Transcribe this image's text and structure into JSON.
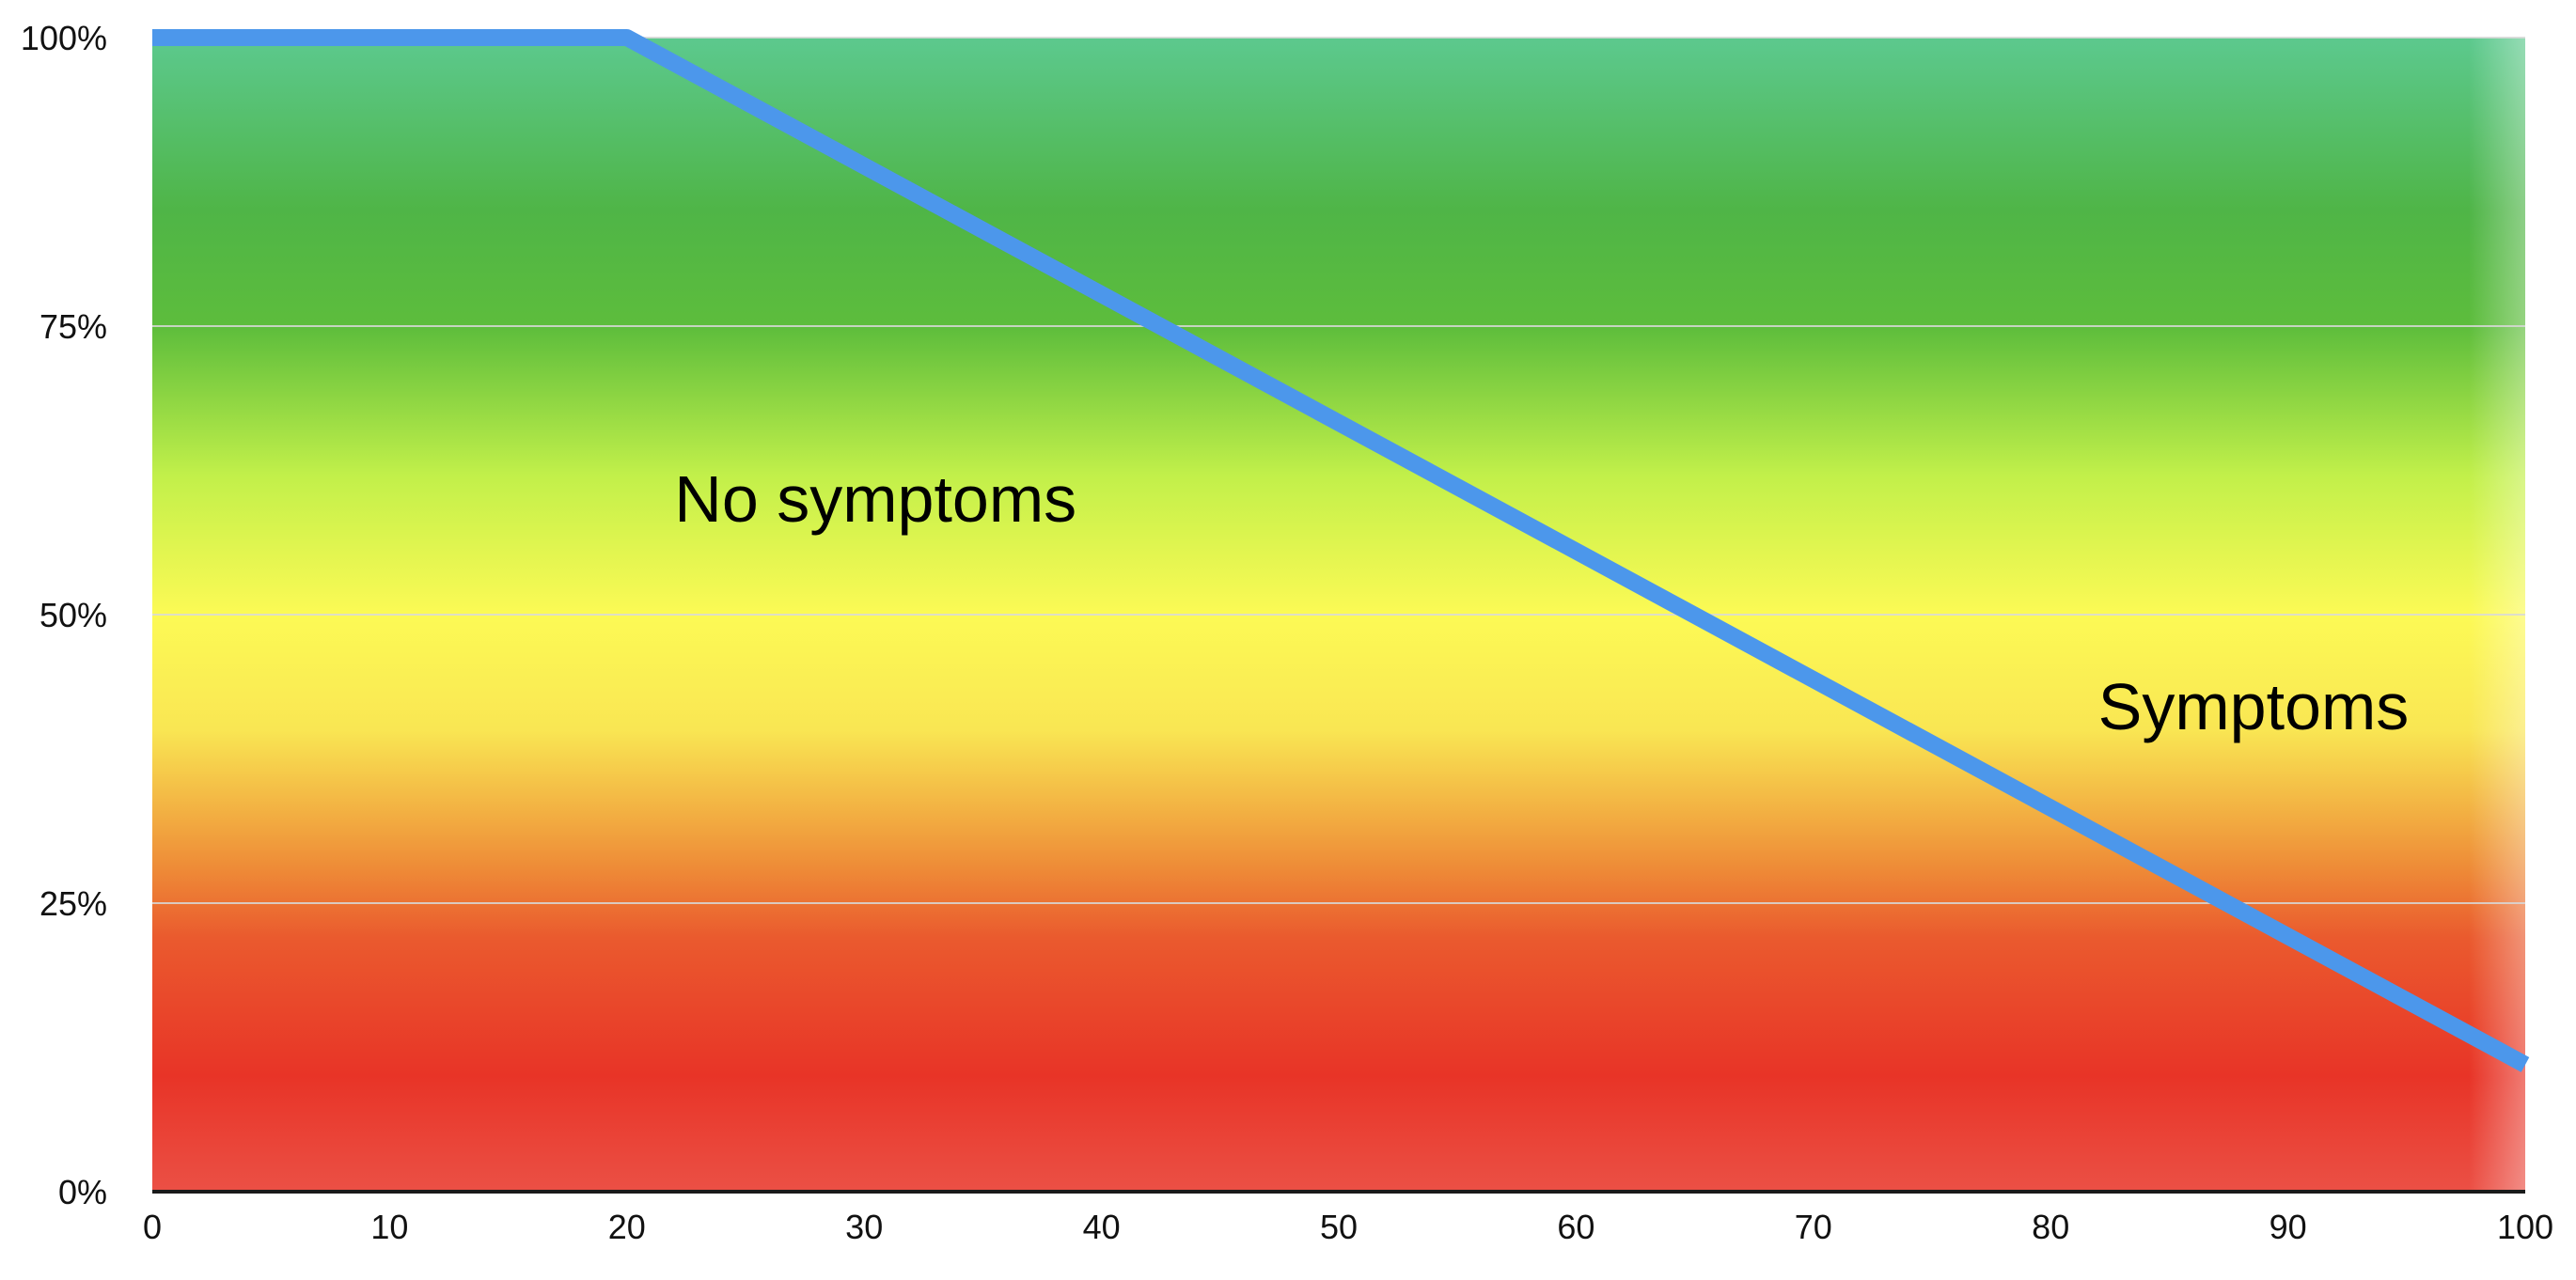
{
  "chart_data": {
    "type": "line",
    "title": "",
    "xlabel": "",
    "ylabel": "",
    "xlim": [
      0,
      100
    ],
    "ylim": [
      0,
      100
    ],
    "x_ticks": [
      0,
      10,
      20,
      30,
      40,
      50,
      60,
      70,
      80,
      90,
      100
    ],
    "x_tick_labels": [
      "0",
      "10",
      "20",
      "30",
      "40",
      "50",
      "60",
      "70",
      "80",
      "90",
      "100"
    ],
    "y_ticks": [
      0,
      25,
      50,
      75,
      100
    ],
    "y_tick_labels": [
      "0%",
      "25%",
      "50%",
      "75%",
      "100%"
    ],
    "grid": "horizontal",
    "legend": "none",
    "background": {
      "type": "vertical-gradient",
      "stops": [
        {
          "y": 100,
          "color": "#5CC98E"
        },
        {
          "y": 85,
          "color": "#4FB547"
        },
        {
          "y": 75,
          "color": "#5DBD3C"
        },
        {
          "y": 62,
          "color": "#C2F04A"
        },
        {
          "y": 50,
          "color": "#FCFA55"
        },
        {
          "y": 40,
          "color": "#F9E653"
        },
        {
          "y": 28,
          "color": "#EE8B37"
        },
        {
          "y": 22,
          "color": "#EA5A2E"
        },
        {
          "y": 10,
          "color": "#E83427"
        },
        {
          "y": 0,
          "color": "#EB5045"
        }
      ]
    },
    "series": [
      {
        "color": "#4C97EB",
        "x": [
          0,
          20,
          100
        ],
        "y": [
          100,
          100,
          11
        ]
      }
    ],
    "annotations": [
      {
        "text": "No symptoms",
        "x": 22,
        "y": 60
      },
      {
        "text": "Symptoms",
        "x": 82,
        "y": 42
      }
    ],
    "colors": {
      "line": "#4C97EB",
      "gridline": "#d8d8d8",
      "baseline": "#1a1a1a",
      "text": "#111111"
    }
  }
}
